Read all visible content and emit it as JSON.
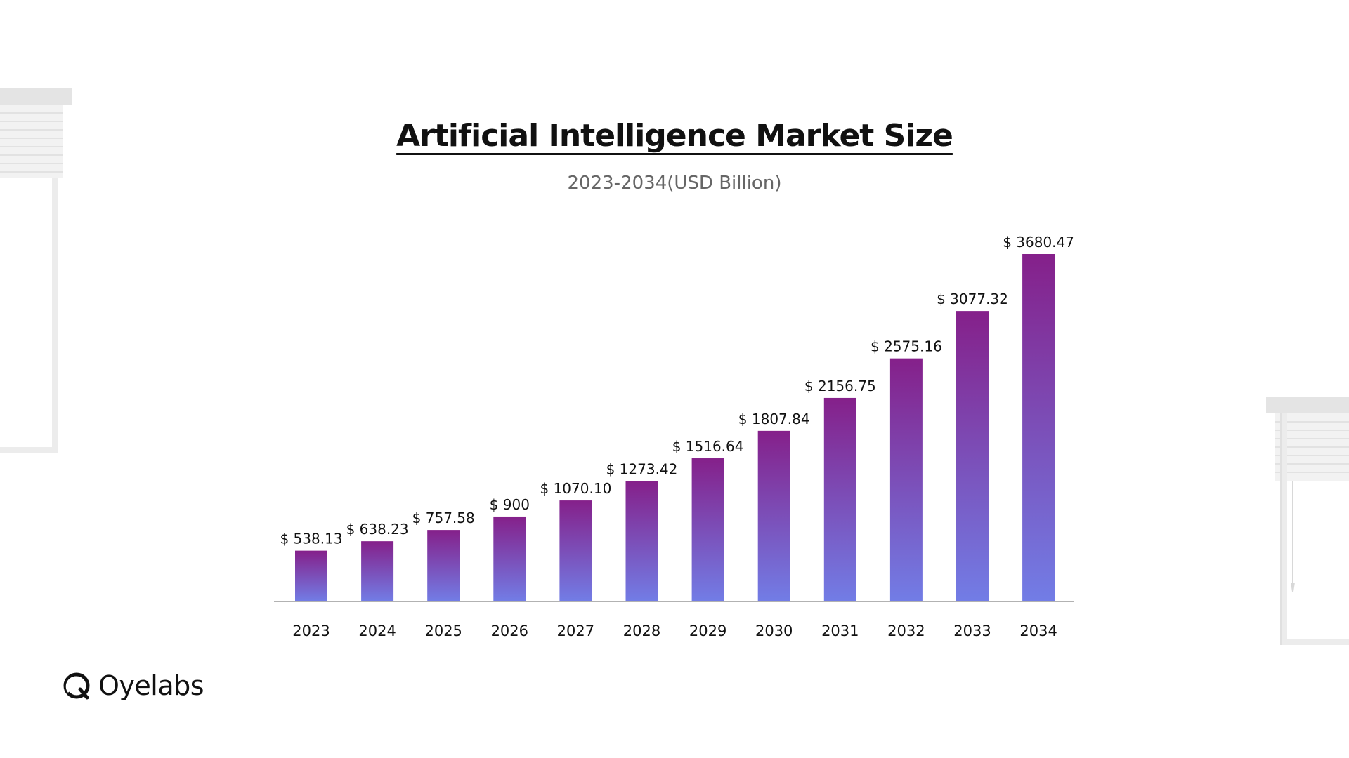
{
  "chart_data": {
    "type": "bar",
    "title": "Artificial Intelligence Market Size",
    "subtitle": "2023-2034(USD Billion)",
    "categories": [
      "2023",
      "2024",
      "2025",
      "2026",
      "2027",
      "2028",
      "2029",
      "2030",
      "2031",
      "2032",
      "2033",
      "2034"
    ],
    "values": [
      538.13,
      638.23,
      757.58,
      900,
      1070.1,
      1273.42,
      1516.64,
      1807.84,
      2156.75,
      2575.16,
      3077.32,
      3680.47
    ],
    "data_labels": [
      "$ 538.13",
      "$ 638.23",
      "$ 757.58",
      "$ 900",
      "$ 1070.10",
      "$ 1273.42",
      "$ 1516.64",
      "$ 1807.84",
      "$ 2156.75",
      "$ 2575.16",
      "$ 3077.32",
      "$ 3680.47"
    ],
    "ylim": [
      0,
      3680.47
    ],
    "grid": false,
    "colors": {
      "bar_top": "#85208A",
      "bar_bottom": "#727DE6",
      "axis": "#999999"
    }
  },
  "brand": {
    "name": "Oyelabs",
    "icon": "oyelabs-logo-icon"
  }
}
